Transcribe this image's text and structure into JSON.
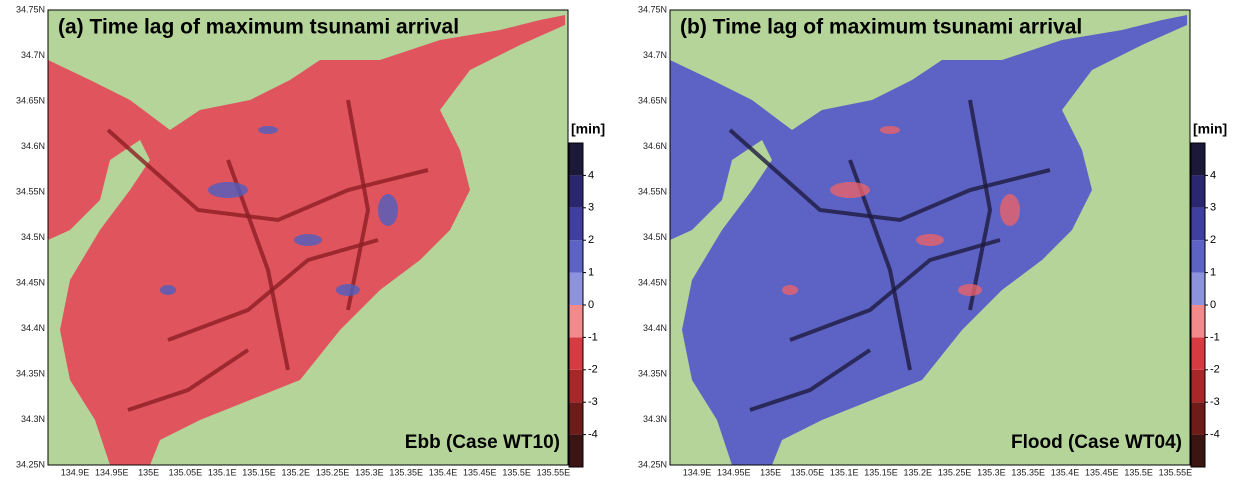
{
  "panels": [
    {
      "title": "(a) Time lag of maximum tsunami arrival",
      "case_label": "Ebb (Case WT10)",
      "water_color": "#e0545e",
      "streak_color": "#8c1e22",
      "accent_color": "#4f5fbf"
    },
    {
      "title": "(b) Time lag of maximum tsunami arrival",
      "case_label": "Flood (Case WT04)",
      "water_color": "#5d63c4",
      "streak_color": "#1e1a40",
      "accent_color": "#e8626a"
    }
  ],
  "x_labels": [
    "134.9E",
    "134.95E",
    "135E",
    "135.05E",
    "135.1E",
    "135.15E",
    "135.2E",
    "135.25E",
    "135.3E",
    "135.35E",
    "135.4E",
    "135.45E",
    "135.5E",
    "135.55E"
  ],
  "y_labels": [
    "34.75N",
    "34.7N",
    "34.65N",
    "34.6N",
    "34.55N",
    "34.5N",
    "34.45N",
    "34.4N",
    "34.35N",
    "34.3N",
    "34.25N"
  ],
  "colorbar": {
    "unit": "[min]",
    "lim": [
      -5,
      5
    ],
    "ticks": [
      -4,
      -3,
      -2,
      -1,
      0,
      1,
      2,
      3,
      4
    ],
    "colors": [
      "#3a1512",
      "#6e1c1a",
      "#a8282a",
      "#d53b40",
      "#f28a8c",
      "#8d92dc",
      "#5d63c4",
      "#3e3f9e",
      "#2a2670",
      "#1c1838"
    ]
  }
}
